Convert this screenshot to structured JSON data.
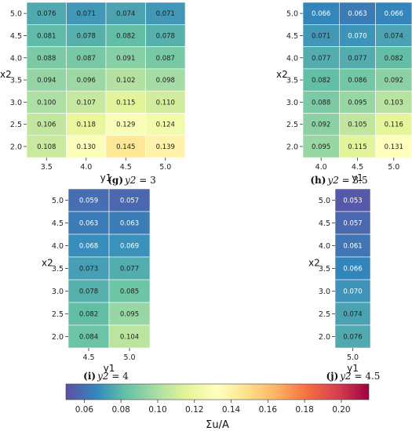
{
  "chart_data": [
    {
      "type": "heatmap",
      "caption": {
        "letter": "(g)",
        "var": "y2",
        "eq": " = 3"
      },
      "xlabel": "y1",
      "ylabel": "x2",
      "x_ticks": [
        "3.5",
        "4.0",
        "4.5",
        "5.0"
      ],
      "y_ticks": [
        "5.0",
        "4.5",
        "4.0",
        "3.5",
        "3.0",
        "2.5",
        "2.0"
      ],
      "values": [
        [
          0.076,
          0.071,
          0.074,
          0.071
        ],
        [
          0.081,
          0.078,
          0.082,
          0.078
        ],
        [
          0.088,
          0.087,
          0.091,
          0.087
        ],
        [
          0.094,
          0.096,
          0.102,
          0.098
        ],
        [
          0.1,
          0.107,
          0.115,
          0.11
        ],
        [
          0.106,
          0.118,
          0.129,
          0.124
        ],
        [
          0.108,
          0.13,
          0.145,
          0.139
        ]
      ],
      "labels": [
        [
          "0.076",
          "0.071",
          "0.074",
          "0.071"
        ],
        [
          "0.081",
          "0.078",
          "0.082",
          "0.078"
        ],
        [
          "0.088",
          "0.087",
          "0.091",
          "0.087"
        ],
        [
          "0.094",
          "0.096",
          "0.102",
          "0.098"
        ],
        [
          "0.100",
          "0.107",
          "0.115",
          "0.110"
        ],
        [
          "0.106",
          "0.118",
          "0.129",
          "0.124"
        ],
        [
          "0.108",
          "0.130",
          "0.145",
          "0.139"
        ]
      ]
    },
    {
      "type": "heatmap",
      "caption": {
        "letter": "(h)",
        "var": "y2",
        "eq": " = 3.5"
      },
      "xlabel": "y1",
      "ylabel": "x2",
      "x_ticks": [
        "4.0",
        "4.5",
        "5.0"
      ],
      "y_ticks": [
        "5.0",
        "4.5",
        "4.0",
        "3.5",
        "3.0",
        "2.5",
        "2.0"
      ],
      "values": [
        [
          0.066,
          0.063,
          0.066
        ],
        [
          0.071,
          0.07,
          0.074
        ],
        [
          0.077,
          0.077,
          0.082
        ],
        [
          0.082,
          0.086,
          0.092
        ],
        [
          0.088,
          0.095,
          0.103
        ],
        [
          0.092,
          0.105,
          0.116
        ],
        [
          0.095,
          0.115,
          0.131
        ]
      ],
      "labels": [
        [
          "0.066",
          "0.063",
          "0.066"
        ],
        [
          "0.071",
          "0.070",
          "0.074"
        ],
        [
          "0.077",
          "0.077",
          "0.082"
        ],
        [
          "0.082",
          "0.086",
          "0.092"
        ],
        [
          "0.088",
          "0.095",
          "0.103"
        ],
        [
          "0.092",
          "0.105",
          "0.116"
        ],
        [
          "0.095",
          "0.115",
          "0.131"
        ]
      ]
    },
    {
      "type": "heatmap",
      "caption": {
        "letter": "(i)",
        "var": "y2",
        "eq": " = 4"
      },
      "xlabel": "y1",
      "ylabel": "x2",
      "x_ticks": [
        "4.5",
        "5.0"
      ],
      "y_ticks": [
        "5.0",
        "4.5",
        "4.0",
        "3.5",
        "3.0",
        "2.5",
        "2.0"
      ],
      "values": [
        [
          0.059,
          0.057
        ],
        [
          0.063,
          0.063
        ],
        [
          0.068,
          0.069
        ],
        [
          0.073,
          0.077
        ],
        [
          0.078,
          0.085
        ],
        [
          0.082,
          0.095
        ],
        [
          0.084,
          0.104
        ]
      ],
      "labels": [
        [
          "0.059",
          "0.057"
        ],
        [
          "0.063",
          "0.063"
        ],
        [
          "0.068",
          "0.069"
        ],
        [
          "0.073",
          "0.077"
        ],
        [
          "0.078",
          "0.085"
        ],
        [
          "0.082",
          "0.095"
        ],
        [
          "0.084",
          "0.104"
        ]
      ]
    },
    {
      "type": "heatmap",
      "caption": {
        "letter": "(j)",
        "var": "y2",
        "eq": " = 4.5"
      },
      "xlabel": "y1",
      "ylabel": "x2",
      "x_ticks": [
        "5.0"
      ],
      "y_ticks": [
        "5.0",
        "4.5",
        "4.0",
        "3.5",
        "3.0",
        "2.5",
        "2.0"
      ],
      "values": [
        [
          0.053
        ],
        [
          0.057
        ],
        [
          0.061
        ],
        [
          0.066
        ],
        [
          0.07
        ],
        [
          0.074
        ],
        [
          0.076
        ]
      ],
      "labels": [
        [
          "0.053"
        ],
        [
          "0.057"
        ],
        [
          "0.061"
        ],
        [
          "0.066"
        ],
        [
          "0.070"
        ],
        [
          "0.074"
        ],
        [
          "0.076"
        ]
      ]
    }
  ],
  "colorbar": {
    "label": "Σu/A",
    "range": [
      0.05,
      0.215
    ],
    "ticks": [
      0.06,
      0.08,
      0.1,
      0.12,
      0.14,
      0.16,
      0.18,
      0.2
    ],
    "tick_labels": [
      "0.06",
      "0.08",
      "0.10",
      "0.12",
      "0.14",
      "0.16",
      "0.18",
      "0.20"
    ],
    "colormap": "Spectral_r",
    "colormap_stops": [
      "#5e4fa2",
      "#3288bd",
      "#66c2a5",
      "#abdda4",
      "#e6f598",
      "#ffffbf",
      "#fee08b",
      "#fdae61",
      "#f46d43",
      "#d53e4f",
      "#9e0142"
    ]
  }
}
